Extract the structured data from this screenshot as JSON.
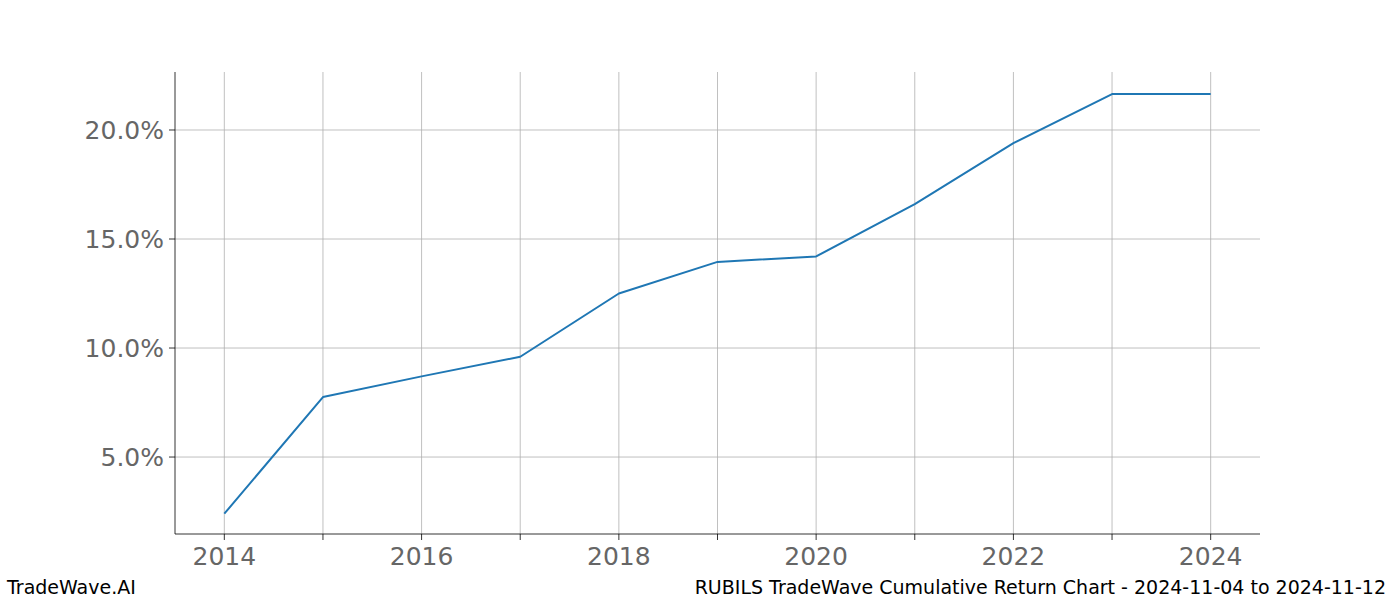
{
  "chart_data": {
    "type": "line",
    "title": "RUBILS TradeWave Cumulative Return Chart - 2024-11-04 to 2024-11-12",
    "source": "TradeWave.AI",
    "x": [
      2014,
      2015,
      2016,
      2017,
      2018,
      2019,
      2020,
      2021,
      2022,
      2023,
      2024
    ],
    "values": [
      2.4,
      7.75,
      8.7,
      9.6,
      12.5,
      13.95,
      14.2,
      16.6,
      19.4,
      21.65,
      21.65
    ],
    "color": "#1f77b4",
    "xlim": [
      2013.5,
      2024.5
    ],
    "ylim": [
      1.47,
      22.66
    ],
    "xticks": [
      2014,
      {
        "value": 2015,
        "label": null
      },
      2016,
      {
        "value": 2017,
        "label": null
      },
      2018,
      {
        "value": 2019,
        "label": null
      },
      2020,
      {
        "value": 2021,
        "label": null
      },
      2022,
      {
        "value": 2023,
        "label": null
      },
      2024
    ],
    "yticks": [
      {
        "value": 5,
        "label": "5.0%"
      },
      {
        "value": 10,
        "label": "10.0%"
      },
      {
        "value": 15,
        "label": "15.0%"
      },
      {
        "value": 20,
        "label": "20.0%"
      }
    ],
    "grid": true
  }
}
